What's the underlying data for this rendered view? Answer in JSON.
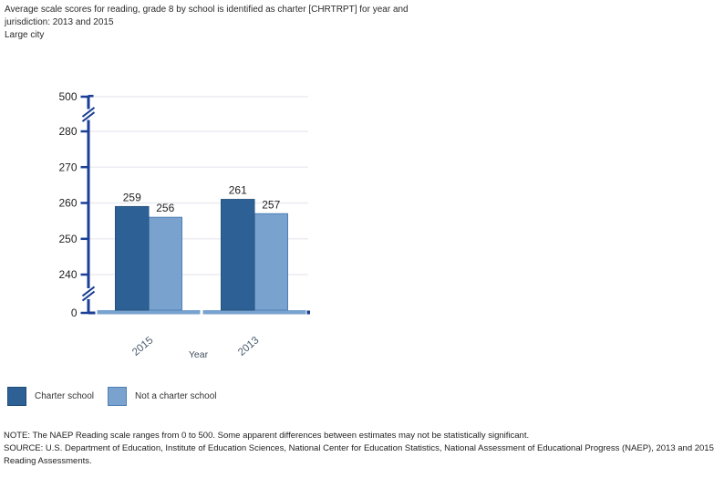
{
  "header": {
    "title": "Average scale scores for reading, grade 8 by school is identified as charter [CHRTRPT] for year and jurisdiction: 2013 and 2015",
    "subtitle": "Large city"
  },
  "chart_data": {
    "type": "bar",
    "title": "Average scale scores for reading, grade 8 by school is identified as charter [CHRTRPT] for year and jurisdiction: 2013 and 2015",
    "subtitle": "Large city",
    "categories": [
      "2015",
      "2013"
    ],
    "series": [
      {
        "name": "Charter school",
        "values": [
          259,
          261
        ],
        "color": "#2d6195",
        "border": "#24527f"
      },
      {
        "name": "Not a charter school",
        "values": [
          256,
          257
        ],
        "color": "#79a3ce",
        "border": "#4d7fb5"
      }
    ],
    "xlabel": "Year",
    "ylabel": "",
    "ylim": [
      0,
      500
    ],
    "y_axis": {
      "tick_labels": [
        "500",
        "280",
        "270",
        "260",
        "250",
        "240",
        "0"
      ],
      "axis_breaks": [
        [
          280,
          500
        ],
        [
          0,
          240
        ]
      ],
      "grid": true
    },
    "value_labels_shown": true,
    "legend_position": "bottom-left",
    "colors": {
      "axis": "#1a3f94",
      "grid": "#ececf2",
      "baseline_strip": "#79a3ce",
      "label_text": "#222222",
      "category_text": "#4b5b6e",
      "axis_title_text": "#414e5c"
    }
  },
  "legend": {
    "items": [
      {
        "label": "Charter school",
        "color": "#2d6195",
        "border": "#1f4a77"
      },
      {
        "label": "Not a charter school",
        "color": "#79a3ce",
        "border": "#4d7fb5"
      }
    ]
  },
  "footer": {
    "note": "NOTE:  The NAEP Reading scale ranges from 0 to 500. Some apparent differences between estimates may not be statistically significant.",
    "source": "SOURCE: U.S. Department of Education, Institute of Education Sciences, National Center for Education Statistics, National Assessment of Educational Progress (NAEP), 2013 and 2015 Reading Assessments."
  }
}
